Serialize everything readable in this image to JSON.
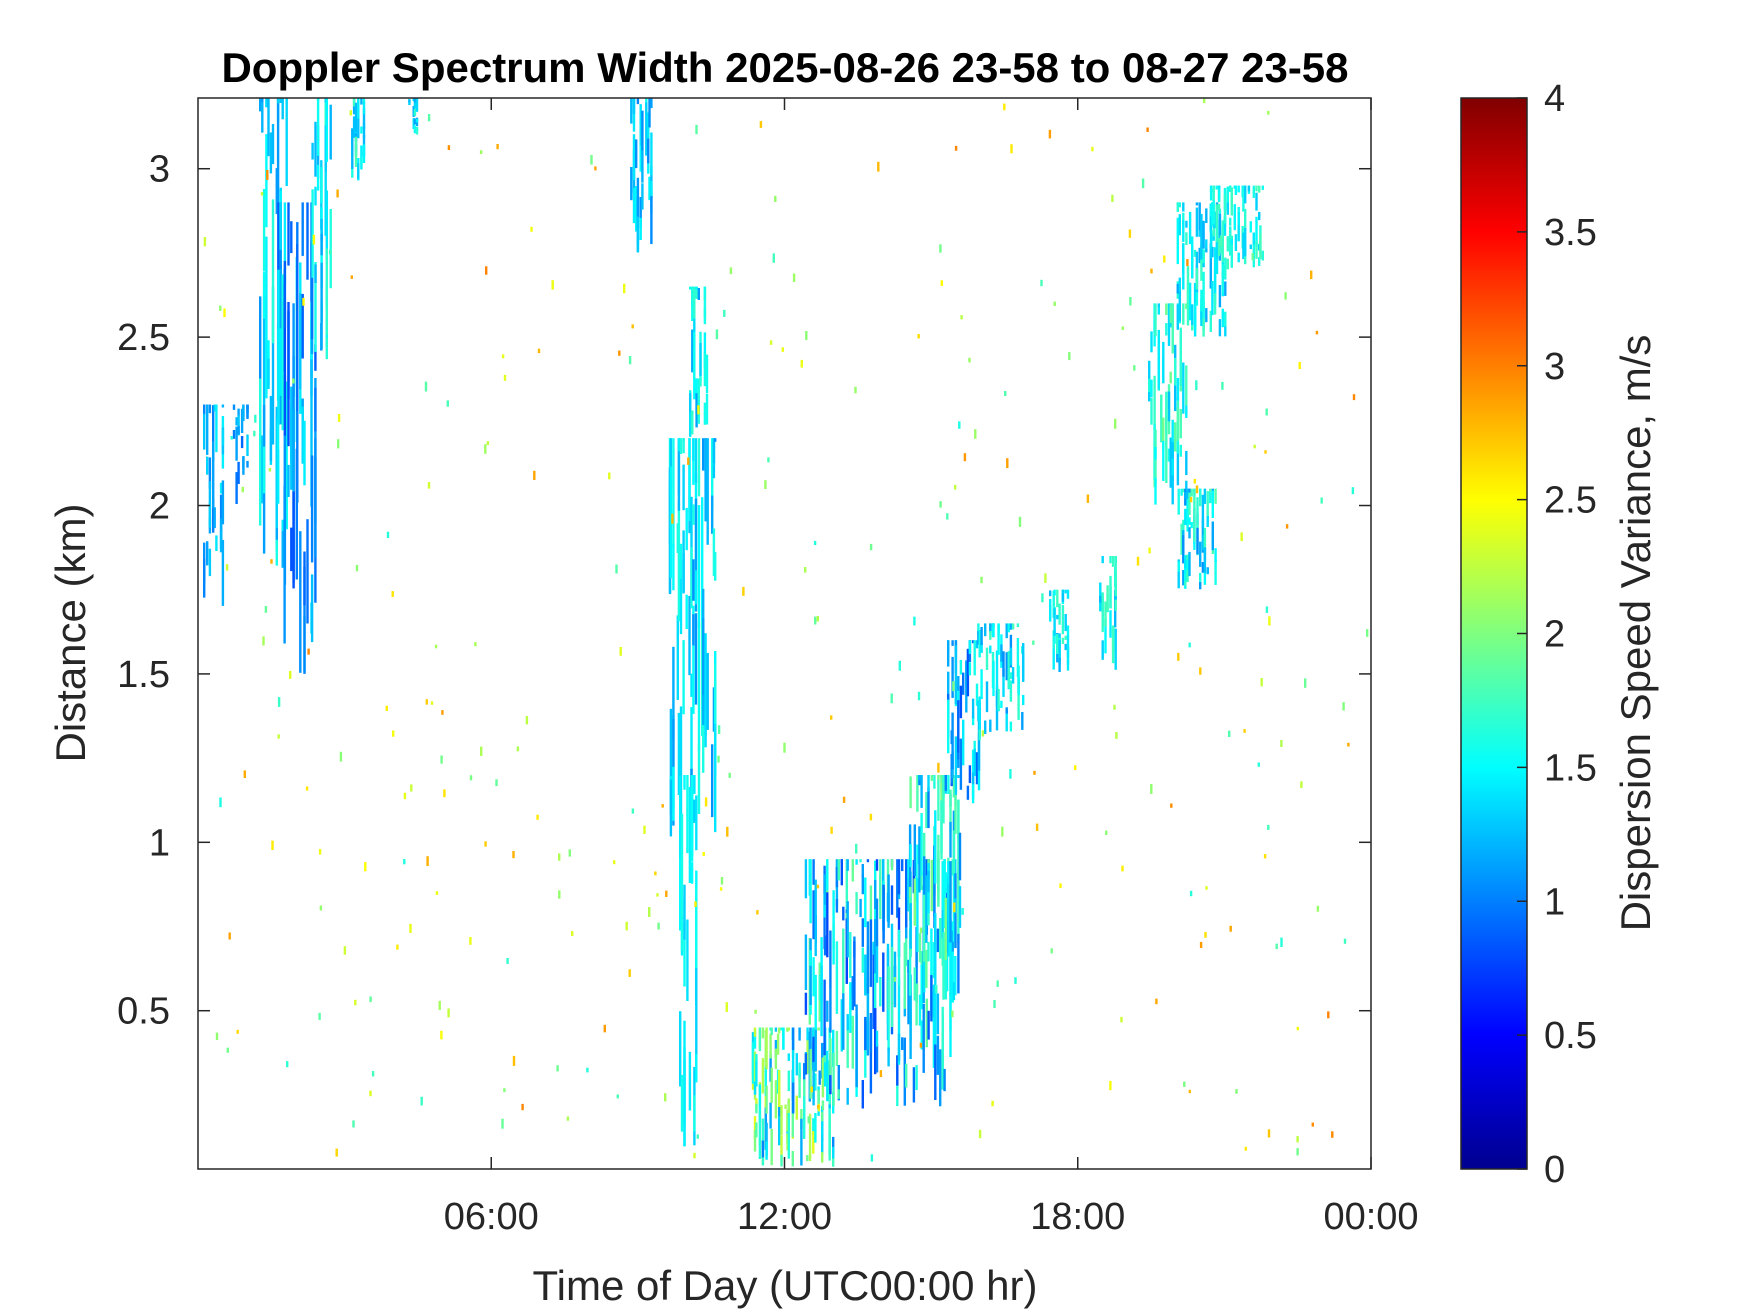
{
  "chart_data": {
    "type": "heatmap",
    "title": "Doppler Spectrum Width 2025-08-26 23-58 to 08-27 23-58",
    "xlabel": "Time of Day (UTC00:00 hr)",
    "ylabel": "Distance (km)",
    "xlim_hours": [
      0,
      24
    ],
    "ylim_km": [
      0.03,
      3.21
    ],
    "x_ticks": [
      {
        "value": 6,
        "label": "06:00"
      },
      {
        "value": 12,
        "label": "12:00"
      },
      {
        "value": 18,
        "label": "18:00"
      },
      {
        "value": 24,
        "label": "00:00"
      }
    ],
    "y_ticks": [
      {
        "value": 0.5,
        "label": "0.5"
      },
      {
        "value": 1,
        "label": "1"
      },
      {
        "value": 1.5,
        "label": "1.5"
      },
      {
        "value": 2,
        "label": "2"
      },
      {
        "value": 2.5,
        "label": "2.5"
      },
      {
        "value": 3,
        "label": "3"
      }
    ],
    "colorbar": {
      "label": "Dispersion Speed Variance, m/s",
      "colormap": "jet",
      "range": [
        0,
        4
      ],
      "ticks": [
        {
          "value": 0,
          "label": "0"
        },
        {
          "value": 0.5,
          "label": "0.5"
        },
        {
          "value": 1,
          "label": "1"
        },
        {
          "value": 1.5,
          "label": "1.5"
        },
        {
          "value": 2,
          "label": "2"
        },
        {
          "value": 2.5,
          "label": "2.5"
        },
        {
          "value": 3,
          "label": "3"
        },
        {
          "value": 3.5,
          "label": "3.5"
        },
        {
          "value": 4,
          "label": "4"
        }
      ]
    },
    "grid": false,
    "regions": [
      {
        "t0": 0.1,
        "t1": 0.5,
        "h0": 1.7,
        "h1": 2.3,
        "v": 1.2,
        "spread": 0.25
      },
      {
        "t0": 0.7,
        "t1": 1.0,
        "h0": 2.0,
        "h1": 2.3,
        "v": 1.1,
        "spread": 0.25
      },
      {
        "t0": 1.2,
        "t1": 1.8,
        "h0": 1.8,
        "h1": 3.21,
        "v": 1.35,
        "spread": 0.3
      },
      {
        "t0": 1.6,
        "t1": 2.4,
        "h0": 1.45,
        "h1": 2.9,
        "v": 1.15,
        "spread": 0.35
      },
      {
        "t0": 2.3,
        "t1": 2.7,
        "h0": 2.4,
        "h1": 3.21,
        "v": 1.4,
        "spread": 0.3
      },
      {
        "t0": 3.1,
        "t1": 3.4,
        "h0": 2.95,
        "h1": 3.21,
        "v": 1.5,
        "spread": 0.3
      },
      {
        "t0": 4.3,
        "t1": 4.5,
        "h0": 3.1,
        "h1": 3.21,
        "v": 1.4,
        "spread": 0.3
      },
      {
        "t0": 8.8,
        "t1": 9.3,
        "h0": 2.75,
        "h1": 3.21,
        "v": 1.3,
        "spread": 0.3
      },
      {
        "t0": 9.6,
        "t1": 10.6,
        "h0": 1.0,
        "h1": 2.2,
        "v": 1.35,
        "spread": 0.3
      },
      {
        "t0": 9.8,
        "t1": 10.2,
        "h0": 0.03,
        "h1": 1.2,
        "v": 1.45,
        "spread": 0.15
      },
      {
        "t0": 10.0,
        "t1": 10.4,
        "h0": 2.2,
        "h1": 2.65,
        "v": 1.4,
        "spread": 0.3
      },
      {
        "t0": 11.3,
        "t1": 13.0,
        "h0": 0.03,
        "h1": 0.45,
        "v": 1.7,
        "spread": 0.7
      },
      {
        "t0": 12.4,
        "t1": 15.5,
        "h0": 0.2,
        "h1": 0.95,
        "v": 1.35,
        "spread": 0.6
      },
      {
        "t0": 14.5,
        "t1": 15.6,
        "h0": 0.5,
        "h1": 1.2,
        "v": 1.5,
        "spread": 0.5
      },
      {
        "t0": 15.3,
        "t1": 16.0,
        "h0": 1.1,
        "h1": 1.6,
        "v": 1.2,
        "spread": 0.4
      },
      {
        "t0": 15.9,
        "t1": 16.9,
        "h0": 1.3,
        "h1": 1.65,
        "v": 1.4,
        "spread": 0.35
      },
      {
        "t0": 17.4,
        "t1": 17.8,
        "h0": 1.5,
        "h1": 1.75,
        "v": 1.45,
        "spread": 0.3
      },
      {
        "t0": 18.4,
        "t1": 18.8,
        "h0": 1.5,
        "h1": 1.85,
        "v": 1.5,
        "spread": 0.3
      },
      {
        "t0": 19.4,
        "t1": 20.2,
        "h0": 2.0,
        "h1": 2.6,
        "v": 1.6,
        "spread": 0.35
      },
      {
        "t0": 20.0,
        "t1": 20.8,
        "h0": 1.75,
        "h1": 2.05,
        "v": 1.45,
        "spread": 0.4
      },
      {
        "t0": 20.0,
        "t1": 21.0,
        "h0": 2.5,
        "h1": 2.9,
        "v": 1.45,
        "spread": 0.3
      },
      {
        "t0": 20.7,
        "t1": 21.8,
        "h0": 2.7,
        "h1": 2.95,
        "v": 1.55,
        "spread": 0.25
      }
    ]
  }
}
